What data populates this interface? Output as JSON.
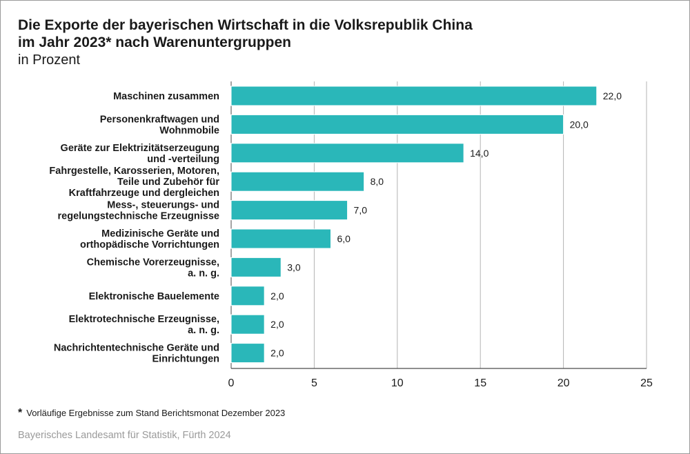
{
  "chart_data": {
    "type": "bar",
    "orientation": "horizontal",
    "title": "Die Exporte der bayerischen Wirtschaft in die Volksrepublik China im Jahr 2023* nach Warenuntergruppen",
    "title_lines": [
      "Die Exporte der bayerischen Wirtschaft in die Volksrepublik China",
      "im Jahr 2023* nach Warenuntergruppen"
    ],
    "subtitle": "in Prozent",
    "categories": [
      [
        "Maschinen zusammen"
      ],
      [
        "Personenkraftwagen und",
        "Wohnmobile"
      ],
      [
        "Geräte zur Elektrizitätserzeugung",
        "und -verteilung"
      ],
      [
        "Fahrgestelle, Karosserien, Motoren,",
        "Teile und Zubehör für",
        "Kraftfahrzeuge und dergleichen"
      ],
      [
        "Mess-, steuerungs- und",
        "regelungstechnische Erzeugnisse"
      ],
      [
        "Medizinische Geräte und",
        "orthopädische Vorrichtungen"
      ],
      [
        "Chemische Vorerzeugnisse,",
        "a. n. g."
      ],
      [
        "Elektronische Bauelemente"
      ],
      [
        "Elektrotechnische Erzeugnisse,",
        "a. n. g."
      ],
      [
        "Nachrichtentechnische Geräte und",
        "Einrichtungen"
      ]
    ],
    "values": [
      22.0,
      20.0,
      14.0,
      8.0,
      7.0,
      6.0,
      3.0,
      2.0,
      2.0,
      2.0
    ],
    "value_labels": [
      "22,0",
      "20,0",
      "14,0",
      "8,0",
      "7,0",
      "6,0",
      "3,0",
      "2,0",
      "2,0",
      "2,0"
    ],
    "xlim": [
      0,
      25
    ],
    "xticks": [
      0,
      5,
      10,
      15,
      20,
      25
    ],
    "xtick_labels": [
      "0",
      "5",
      "10",
      "15",
      "20",
      "25"
    ],
    "xlabel": "",
    "ylabel": "",
    "grid": true,
    "bar_color": "#2ab7b9",
    "bar_edge_color": "#ffffff",
    "grid_color": "#b3b3b3"
  },
  "footnote": {
    "marker": "*",
    "text": "Vorläufige Ergebnisse zum Stand Berichtsmonat Dezember 2023"
  },
  "source": "Bayerisches Landesamt für Statistik, Fürth 2024"
}
